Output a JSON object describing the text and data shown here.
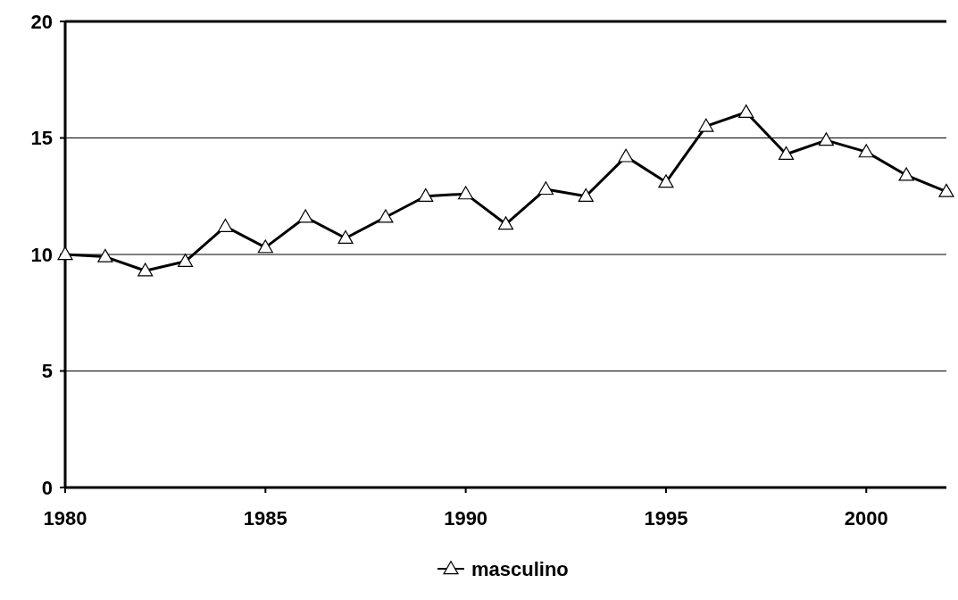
{
  "chart_data": {
    "type": "line",
    "x": [
      1980,
      1981,
      1982,
      1983,
      1984,
      1985,
      1986,
      1987,
      1988,
      1989,
      1990,
      1991,
      1992,
      1993,
      1994,
      1995,
      1996,
      1997,
      1998,
      1999,
      2000,
      2001,
      2002
    ],
    "series": [
      {
        "name": "masculino",
        "color": "#000000",
        "values": [
          10.0,
          9.9,
          9.3,
          9.7,
          11.2,
          10.3,
          11.6,
          10.7,
          11.6,
          12.5,
          12.6,
          11.3,
          12.8,
          12.5,
          14.2,
          13.1,
          15.5,
          16.1,
          14.3,
          14.9,
          14.4,
          13.4,
          12.7
        ]
      }
    ],
    "xlim": [
      1980,
      2002
    ],
    "xticks": [
      1980,
      1985,
      1990,
      1995,
      2000
    ],
    "ylim": [
      0,
      20
    ],
    "yticks": [
      0,
      5,
      10,
      15,
      20
    ],
    "grid": "y",
    "legend": "bottom",
    "marker": "triangle",
    "line_style": "solid"
  }
}
